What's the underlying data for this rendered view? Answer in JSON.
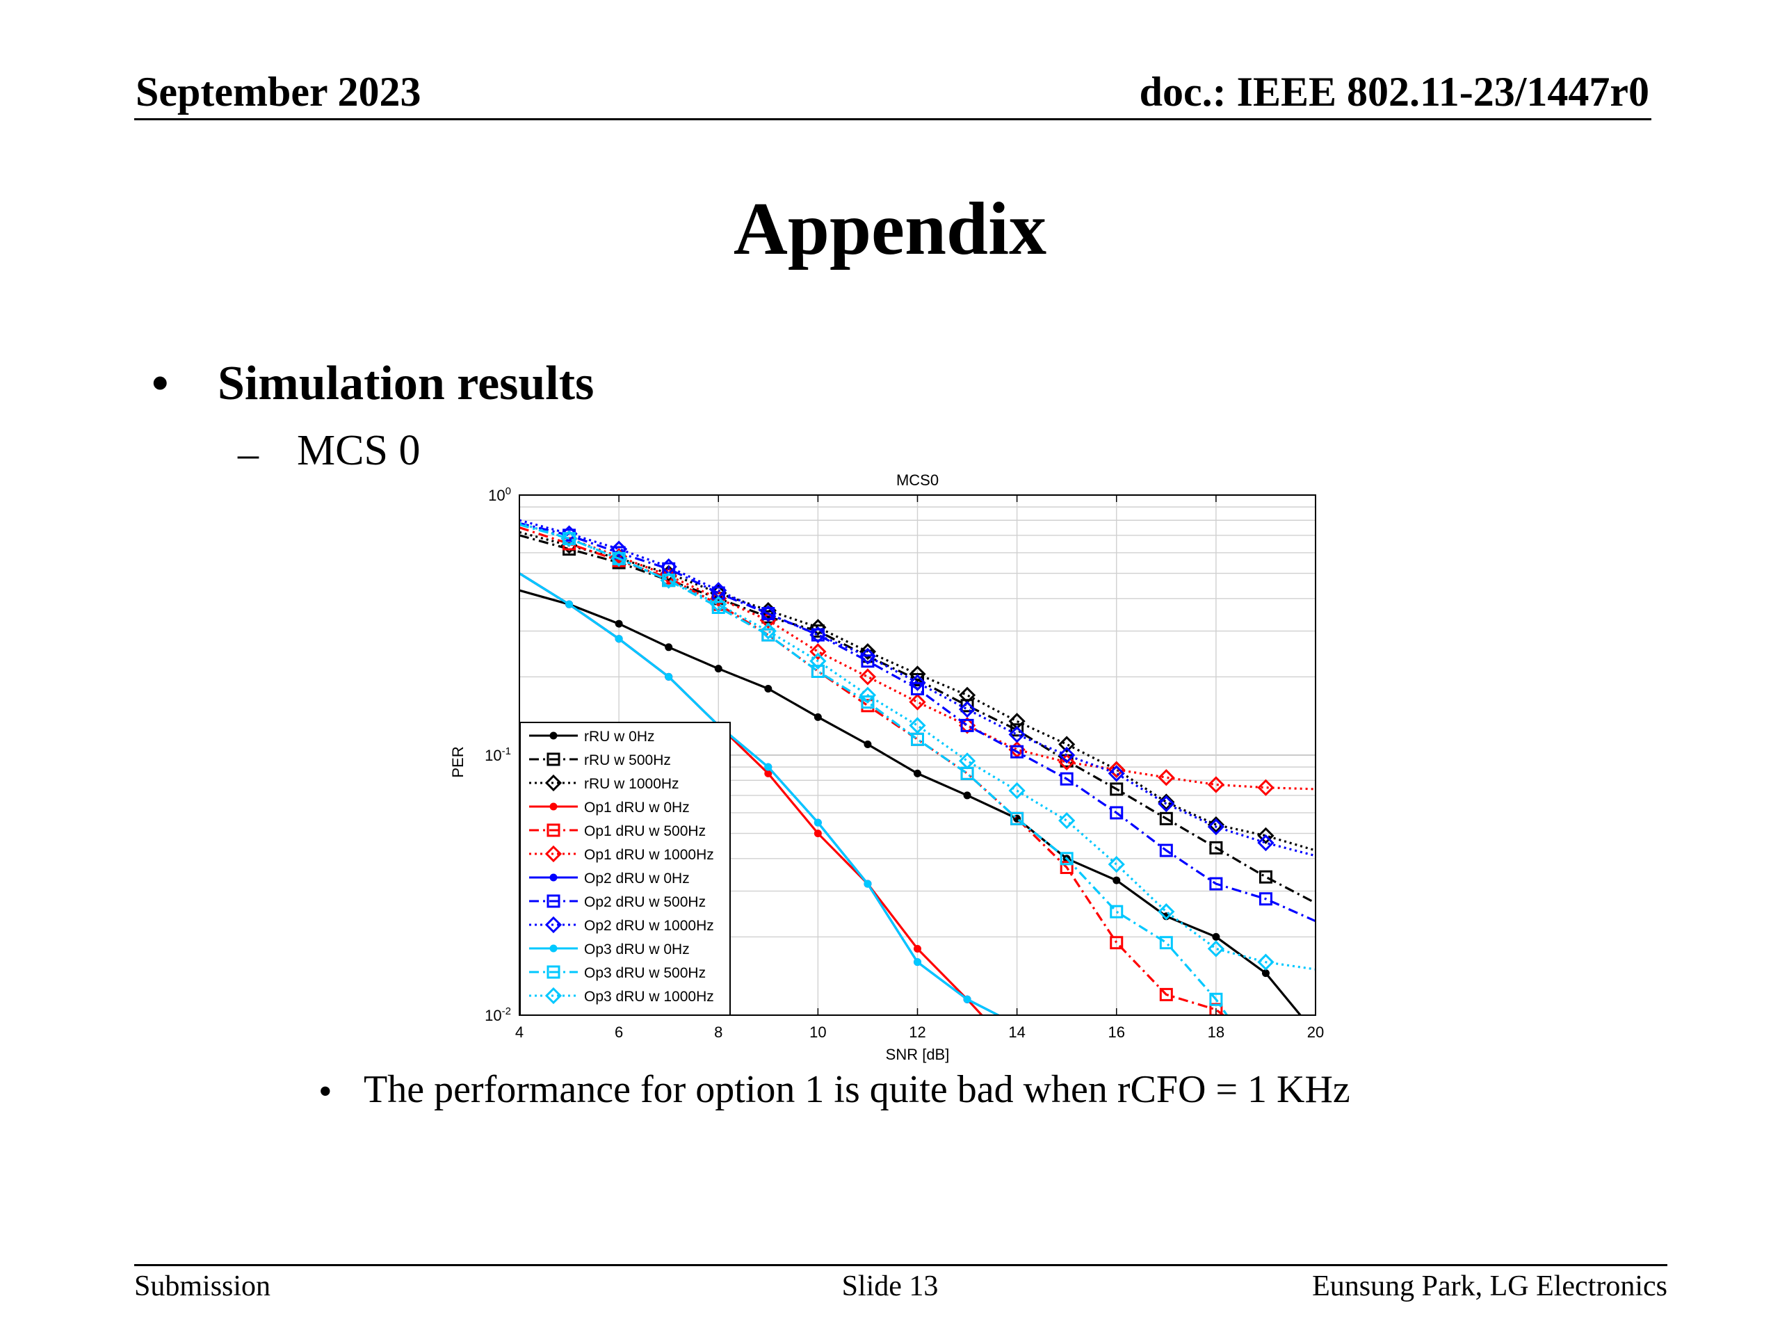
{
  "header": {
    "date": "September 2023",
    "doc": "doc.: IEEE 802.11-23/1447r0"
  },
  "slide": {
    "title": "Appendix",
    "bullet1": "Simulation results",
    "bullet2": "MCS 0",
    "bullet3": "The performance for option 1 is quite bad when rCFO = 1 KHz",
    "bullet_glyph": "•",
    "dash_glyph": "–"
  },
  "footer": {
    "left": "Submission",
    "center": "Slide 13",
    "right": "Eunsung Park, LG Electronics"
  },
  "chart_data": {
    "type": "line",
    "title": "MCS0",
    "xlabel": "SNR [dB]",
    "ylabel": "PER",
    "xlim": [
      4,
      20
    ],
    "ylim": [
      0.01,
      1
    ],
    "yscale": "log",
    "xticks": [
      4,
      6,
      8,
      10,
      12,
      14,
      16,
      18,
      20
    ],
    "yticks": [
      0.01,
      0.1,
      1
    ],
    "ytick_labels": [
      [
        "10",
        "-2"
      ],
      [
        "10",
        "-1"
      ],
      [
        "10",
        "0"
      ]
    ],
    "grid": true,
    "legend_position": "lower-left",
    "series": [
      {
        "name": "rRU w 0Hz",
        "color": "#000000",
        "dash": "solid",
        "marker": "dot",
        "x": [
          4,
          5,
          6,
          7,
          8,
          9,
          10,
          11,
          12,
          13,
          14,
          15,
          16,
          17,
          18,
          19,
          20
        ],
        "y": [
          0.43,
          0.38,
          0.32,
          0.26,
          0.215,
          0.18,
          0.14,
          0.11,
          0.085,
          0.07,
          0.057,
          0.04,
          0.033,
          0.024,
          0.02,
          0.0145,
          0.0085
        ]
      },
      {
        "name": "rRU w 500Hz",
        "color": "#000000",
        "dash": "dashdot",
        "marker": "square",
        "x": [
          4,
          5,
          6,
          7,
          8,
          9,
          10,
          11,
          12,
          13,
          14,
          15,
          16,
          17,
          18,
          19,
          20
        ],
        "y": [
          0.7,
          0.62,
          0.55,
          0.47,
          0.4,
          0.34,
          0.3,
          0.24,
          0.195,
          0.155,
          0.125,
          0.095,
          0.074,
          0.057,
          0.044,
          0.034,
          0.027
        ]
      },
      {
        "name": "rRU w 1000Hz",
        "color": "#000000",
        "dash": "dotted",
        "marker": "diamond",
        "x": [
          4,
          5,
          6,
          7,
          8,
          9,
          10,
          11,
          12,
          13,
          14,
          15,
          16,
          17,
          18,
          19,
          20
        ],
        "y": [
          0.72,
          0.64,
          0.57,
          0.5,
          0.42,
          0.36,
          0.31,
          0.25,
          0.205,
          0.17,
          0.135,
          0.11,
          0.088,
          0.066,
          0.054,
          0.049,
          0.043
        ]
      },
      {
        "name": "Op1 dRU w 0Hz",
        "color": "#ff0000",
        "dash": "solid",
        "marker": "dot",
        "x": [
          4,
          5,
          6,
          7,
          8,
          9,
          10,
          11,
          12,
          13,
          13.4
        ],
        "y": [
          0.5,
          0.38,
          0.28,
          0.2,
          0.13,
          0.085,
          0.05,
          0.032,
          0.018,
          0.0115,
          0.0095
        ]
      },
      {
        "name": "Op1 dRU w 500Hz",
        "color": "#ff0000",
        "dash": "dashdot",
        "marker": "square",
        "x": [
          4,
          5,
          6,
          7,
          8,
          9,
          10,
          11,
          12,
          13,
          14,
          15,
          16,
          17,
          18,
          18.3
        ],
        "y": [
          0.75,
          0.65,
          0.56,
          0.48,
          0.38,
          0.29,
          0.21,
          0.155,
          0.115,
          0.085,
          0.057,
          0.037,
          0.019,
          0.012,
          0.0105,
          0.0095
        ]
      },
      {
        "name": "Op1 dRU w 1000Hz",
        "color": "#ff0000",
        "dash": "dotted",
        "marker": "diamond",
        "x": [
          4,
          5,
          6,
          7,
          8,
          9,
          10,
          11,
          12,
          13,
          14,
          15,
          16,
          17,
          18,
          19,
          20
        ],
        "y": [
          0.78,
          0.68,
          0.58,
          0.49,
          0.4,
          0.33,
          0.25,
          0.2,
          0.16,
          0.13,
          0.105,
          0.094,
          0.088,
          0.082,
          0.077,
          0.075,
          0.074
        ]
      },
      {
        "name": "Op2 dRU w 0Hz",
        "color": "#0000ff",
        "dash": "solid",
        "marker": "dot",
        "x": [
          4,
          5,
          6,
          7,
          8,
          9,
          10,
          11,
          12,
          13,
          13.85
        ],
        "y": [
          0.5,
          0.38,
          0.28,
          0.2,
          0.13,
          0.09,
          0.055,
          0.032,
          0.016,
          0.0115,
          0.0095
        ]
      },
      {
        "name": "Op2 dRU w 500Hz",
        "color": "#0000ff",
        "dash": "dashdot",
        "marker": "square",
        "x": [
          4,
          5,
          6,
          7,
          8,
          9,
          10,
          11,
          12,
          13,
          14,
          15,
          16,
          17,
          18,
          19,
          20
        ],
        "y": [
          0.78,
          0.7,
          0.6,
          0.52,
          0.42,
          0.35,
          0.29,
          0.23,
          0.18,
          0.13,
          0.103,
          0.081,
          0.06,
          0.043,
          0.032,
          0.028,
          0.023
        ]
      },
      {
        "name": "Op2 dRU w 1000Hz",
        "color": "#0000ff",
        "dash": "dotted",
        "marker": "diamond",
        "x": [
          4,
          5,
          6,
          7,
          8,
          9,
          10,
          11,
          12,
          13,
          14,
          15,
          16,
          17,
          18,
          19,
          20
        ],
        "y": [
          0.8,
          0.71,
          0.62,
          0.53,
          0.43,
          0.35,
          0.29,
          0.24,
          0.19,
          0.15,
          0.12,
          0.1,
          0.085,
          0.065,
          0.053,
          0.046,
          0.041
        ]
      },
      {
        "name": "Op3 dRU w 0Hz",
        "color": "#00c8ff",
        "dash": "solid",
        "marker": "dot",
        "x": [
          4,
          5,
          6,
          7,
          8,
          9,
          10,
          11,
          12,
          13,
          13.85
        ],
        "y": [
          0.5,
          0.38,
          0.28,
          0.2,
          0.13,
          0.09,
          0.055,
          0.032,
          0.016,
          0.0115,
          0.0095
        ]
      },
      {
        "name": "Op3 dRU w 500Hz",
        "color": "#00c8ff",
        "dash": "dashdot",
        "marker": "square",
        "x": [
          4,
          5,
          6,
          7,
          8,
          9,
          10,
          11,
          12,
          13,
          14,
          15,
          16,
          17,
          18,
          18.3
        ],
        "y": [
          0.77,
          0.68,
          0.57,
          0.47,
          0.37,
          0.29,
          0.21,
          0.16,
          0.115,
          0.085,
          0.057,
          0.04,
          0.025,
          0.019,
          0.0115,
          0.0095
        ]
      },
      {
        "name": "Op3 dRU w 1000Hz",
        "color": "#00c8ff",
        "dash": "dotted",
        "marker": "diamond",
        "x": [
          4,
          5,
          6,
          7,
          8,
          9,
          10,
          11,
          12,
          13,
          14,
          15,
          16,
          17,
          18,
          19,
          20
        ],
        "y": [
          0.78,
          0.68,
          0.57,
          0.47,
          0.38,
          0.3,
          0.23,
          0.17,
          0.13,
          0.095,
          0.073,
          0.056,
          0.038,
          0.025,
          0.018,
          0.016,
          0.015
        ]
      }
    ]
  }
}
